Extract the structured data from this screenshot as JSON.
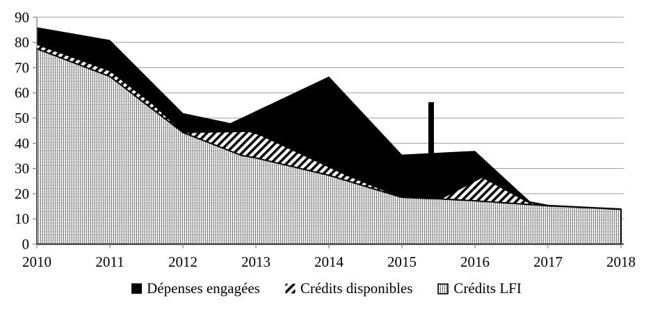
{
  "chart_data": {
    "type": "area",
    "title": "",
    "xlabel": "",
    "ylabel": "",
    "xlim": [
      2010,
      2018
    ],
    "ylim": [
      0,
      90
    ],
    "x_ticks": [
      "2010",
      "2011",
      "2012",
      "2013",
      "2014",
      "2015",
      "2016",
      "2017",
      "2018"
    ],
    "y_ticks": [
      0,
      10,
      20,
      30,
      40,
      50,
      60,
      70,
      80,
      90
    ],
    "grid": true,
    "legend_position": "bottom",
    "series": [
      {
        "name": "Dépenses engagées",
        "pattern": "solid",
        "points": [
          [
            2010,
            86
          ],
          [
            2011,
            81
          ],
          [
            2012,
            52
          ],
          [
            2012.65,
            48
          ],
          [
            2014,
            66.5
          ],
          [
            2015,
            35.5
          ],
          [
            2016,
            37
          ],
          [
            2016.75,
            17
          ],
          [
            2017,
            15.6
          ],
          [
            2018,
            14.2
          ]
        ]
      },
      {
        "name": "Crédits disponibles",
        "pattern": "hatch",
        "points": [
          [
            2010,
            79
          ],
          [
            2011,
            68.5
          ],
          [
            2011.6,
            55
          ],
          [
            2012,
            44
          ],
          [
            2012.9,
            44.5
          ],
          [
            2013.05,
            43.2
          ],
          [
            2014.25,
            27
          ],
          [
            2015,
            18.2
          ],
          [
            2015.55,
            18
          ],
          [
            2016.1,
            26.3
          ],
          [
            2016.72,
            16.5
          ],
          [
            2017,
            14.7
          ],
          [
            2018,
            13
          ]
        ]
      },
      {
        "name": "Crédits LFI",
        "pattern": "dots",
        "points": [
          [
            2010,
            77.5
          ],
          [
            2011,
            66.5
          ],
          [
            2012,
            44.3
          ],
          [
            2012.8,
            35.2
          ],
          [
            2013,
            34.2
          ],
          [
            2014,
            27.3
          ],
          [
            2015,
            18.5
          ],
          [
            2015.5,
            18
          ],
          [
            2016,
            17.2
          ],
          [
            2017,
            15.2
          ],
          [
            2018,
            13.8
          ]
        ]
      }
    ],
    "annotation_spike": {
      "x": 2015.4,
      "from": 36,
      "to": 56.3
    }
  },
  "colors": {
    "ink": "#000000",
    "background": "#ffffff",
    "gridline": "#9a9a9a",
    "axis": "#808080",
    "x_axis": "#262626"
  }
}
